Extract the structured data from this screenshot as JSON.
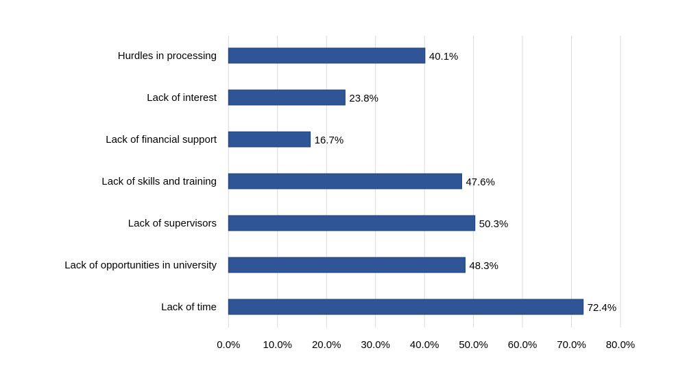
{
  "chart_data": {
    "type": "bar",
    "orientation": "horizontal",
    "title": "",
    "xlabel": "",
    "ylabel": "",
    "categories": [
      "Hurdles in processing",
      "Lack of interest",
      "Lack of financial support",
      "Lack of skills and training",
      "Lack of supervisors",
      "Lack of opportunities in university",
      "Lack of time"
    ],
    "values": [
      40.1,
      23.8,
      16.7,
      47.6,
      50.3,
      48.3,
      72.4
    ],
    "data_labels": [
      "40.1%",
      "23.8%",
      "16.7%",
      "47.6%",
      "50.3%",
      "48.3%",
      "72.4%"
    ],
    "xlim": [
      0,
      80
    ],
    "xticks": [
      0,
      10,
      20,
      30,
      40,
      50,
      60,
      70,
      80
    ],
    "xtick_labels": [
      "0.0%",
      "10.0%",
      "20.0%",
      "30.0%",
      "40.0%",
      "50.0%",
      "60.0%",
      "70.0%",
      "80.0%"
    ],
    "grid": "vertical",
    "legend": "none",
    "bar_color": "#2f5597",
    "bar_border_color": "#1f3f7a",
    "grid_color": "#d9d9d9"
  }
}
